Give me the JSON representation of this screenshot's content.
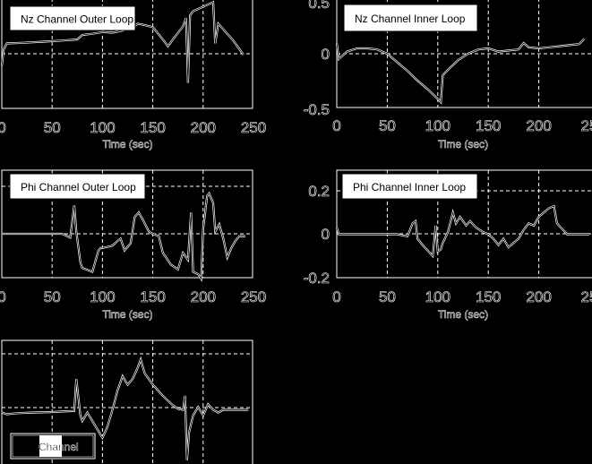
{
  "figure": {
    "background": "#000000",
    "foreground": "#ffffff"
  },
  "chart_data": [
    {
      "id": "nz-outer",
      "type": "line",
      "title": "Nz Channel Outer Loop",
      "legend": "Nz Channel Outer Loop",
      "xlabel": "Time (sec)",
      "ylabel": "",
      "xlim": [
        0,
        250
      ],
      "xticks": [
        "0",
        "50",
        "100",
        "150",
        "200",
        "250"
      ],
      "yticks": [],
      "grid": true,
      "x": [
        0,
        2,
        5,
        20,
        40,
        60,
        75,
        80,
        90,
        100,
        110,
        120,
        130,
        135,
        140,
        150,
        160,
        165,
        170,
        180,
        183,
        185,
        187,
        190,
        200,
        210,
        212,
        215,
        220,
        230,
        240
      ],
      "values": [
        -0.35,
        -0.05,
        0.05,
        0.06,
        0.08,
        0.1,
        0.12,
        0.2,
        0.22,
        0.25,
        0.24,
        0.28,
        0.32,
        0.4,
        0.38,
        0.34,
        0.12,
        0.0,
        0.12,
        0.35,
        0.5,
        -0.65,
        0.55,
        0.62,
        0.7,
        0.78,
        0.05,
        0.4,
        0.3,
        0.1,
        -0.15
      ]
    },
    {
      "id": "nz-inner",
      "type": "line",
      "title": "Nz Channel Inner Loop",
      "legend": "Nz Channel Inner Loop",
      "xlabel": "Time (sec)",
      "ylabel": "",
      "xlim": [
        0,
        250
      ],
      "ylim": [
        -0.5,
        0.5
      ],
      "xticks": [
        "0",
        "50",
        "100",
        "150",
        "200",
        "25"
      ],
      "yticks": [
        "0.5",
        "0",
        "-0.5"
      ],
      "grid": true,
      "x": [
        0,
        2,
        10,
        20,
        30,
        40,
        50,
        60,
        70,
        80,
        90,
        100,
        103,
        105,
        110,
        120,
        130,
        140,
        150,
        160,
        170,
        180,
        185,
        190,
        200,
        210,
        220,
        230,
        240,
        245
      ],
      "values": [
        0.1,
        -0.05,
        0.02,
        0.05,
        0.05,
        0.04,
        0.0,
        -0.08,
        -0.16,
        -0.25,
        -0.33,
        -0.42,
        -0.45,
        -0.2,
        -0.15,
        -0.06,
        0.0,
        0.04,
        0.05,
        0.02,
        0.03,
        0.04,
        0.1,
        0.06,
        0.05,
        0.06,
        0.07,
        0.08,
        0.09,
        0.14
      ]
    },
    {
      "id": "phi-outer",
      "type": "line",
      "title": "Phi Channel Outer Loop",
      "legend": "Phi Channel Outer Loop",
      "xlabel": "Time (sec)",
      "ylabel": "",
      "xlim": [
        0,
        250
      ],
      "xticks": [
        "0",
        "50",
        "100",
        "150",
        "200",
        "250"
      ],
      "yticks": [],
      "grid": true,
      "x": [
        0,
        20,
        40,
        60,
        68,
        72,
        74,
        78,
        80,
        90,
        96,
        98,
        100,
        110,
        115,
        118,
        122,
        128,
        132,
        136,
        140,
        146,
        150,
        156,
        160,
        168,
        175,
        180,
        185,
        188,
        190,
        195,
        198,
        200,
        204,
        206,
        210,
        212,
        216,
        220,
        224,
        228,
        232,
        236,
        242
      ],
      "values": [
        0.0,
        0.0,
        0.0,
        0.0,
        -0.08,
        0.6,
        0.05,
        -0.6,
        -0.72,
        -0.8,
        -0.35,
        -0.3,
        -0.3,
        -0.25,
        -0.15,
        -0.1,
        -0.35,
        -0.2,
        0.35,
        0.45,
        0.3,
        0.05,
        0.0,
        -0.05,
        -0.4,
        -0.65,
        -0.75,
        -0.4,
        -0.55,
        0.45,
        -0.8,
        -0.85,
        -0.95,
        0.1,
        0.8,
        0.85,
        0.65,
        0.05,
        0.2,
        -0.1,
        -0.5,
        -0.3,
        -0.15,
        -0.05,
        -0.05
      ]
    },
    {
      "id": "phi-inner",
      "type": "line",
      "title": "Phi Channel Inner Loop",
      "legend": "Phi Channel Inner Loop",
      "xlabel": "Time (sec)",
      "ylabel": "",
      "xlim": [
        0,
        250
      ],
      "ylim": [
        -0.2,
        0.2
      ],
      "xticks": [
        "0",
        "50",
        "100",
        "150",
        "200",
        "25"
      ],
      "yticks": [
        "0.2",
        "0",
        "-0.2"
      ],
      "grid": true,
      "x": [
        0,
        2,
        10,
        20,
        40,
        60,
        70,
        75,
        78,
        80,
        85,
        95,
        98,
        100,
        103,
        105,
        110,
        115,
        118,
        122,
        128,
        132,
        138,
        145,
        150,
        155,
        160,
        165,
        170,
        175,
        180,
        185,
        190,
        195,
        200,
        210,
        215,
        218,
        222,
        228,
        235,
        245,
        250
      ],
      "values": [
        0.03,
        0.0,
        0.0,
        0.0,
        0.0,
        0.0,
        -0.01,
        0.05,
        0.06,
        -0.02,
        -0.05,
        -0.1,
        0.04,
        -0.08,
        -0.07,
        -0.04,
        0.01,
        0.1,
        0.05,
        0.08,
        0.04,
        0.06,
        0.03,
        0.01,
        0.0,
        -0.02,
        -0.05,
        -0.02,
        -0.06,
        -0.04,
        -0.02,
        0.02,
        0.05,
        0.04,
        0.08,
        0.12,
        0.13,
        0.05,
        0.03,
        0.0,
        0.0,
        0.0,
        0.0
      ]
    },
    {
      "id": "bottom-channel",
      "type": "line",
      "title": "Channel",
      "legend": "Channel",
      "xlabel": "",
      "ylabel": "",
      "xlim": [
        0,
        250
      ],
      "xticks": [],
      "yticks": [],
      "grid": true,
      "x": [
        0,
        5,
        15,
        30,
        50,
        60,
        72,
        74,
        78,
        80,
        85,
        90,
        95,
        100,
        105,
        110,
        115,
        120,
        125,
        130,
        135,
        138,
        142,
        150,
        160,
        170,
        175,
        180,
        182,
        184,
        186,
        190,
        195,
        200,
        205,
        210,
        215,
        220,
        225,
        235,
        245
      ],
      "values": [
        -0.05,
        -0.08,
        -0.06,
        -0.05,
        -0.04,
        -0.03,
        -0.02,
        0.55,
        -0.1,
        -0.2,
        -0.05,
        -0.2,
        -0.35,
        -0.5,
        -0.3,
        0.0,
        0.35,
        0.6,
        0.45,
        0.55,
        0.75,
        0.9,
        0.65,
        0.45,
        0.25,
        0.08,
        0.02,
        0.0,
        0.25,
        -0.9,
        -0.4,
        -0.1,
        0.05,
        -0.1,
        0.1,
        0.0,
        -0.05,
        0.0,
        0.0,
        0.0,
        0.0
      ]
    }
  ]
}
